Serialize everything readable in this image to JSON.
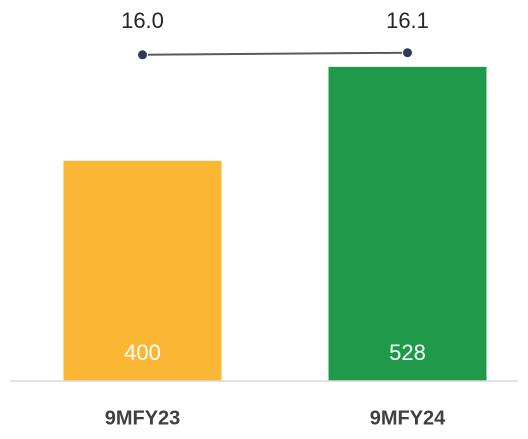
{
  "chart_data": {
    "type": "bar",
    "categories": [
      "9MFY23",
      "9MFY24"
    ],
    "series": [
      {
        "type": "bar",
        "colors": [
          "#FBB634",
          "#1E9A4A"
        ],
        "values": [
          400,
          528
        ]
      },
      {
        "type": "line",
        "axis": "y2",
        "color": "#2E3A59",
        "values": [
          16.0,
          16.1
        ],
        "value_labels": [
          "16.0",
          "16.1"
        ]
      }
    ],
    "ylim": [
      100,
      600
    ],
    "y2lim": [
      0,
      18
    ]
  }
}
